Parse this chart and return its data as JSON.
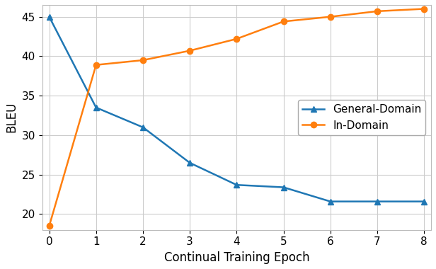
{
  "epochs": [
    0,
    1,
    2,
    3,
    4,
    5,
    6,
    7,
    8
  ],
  "general_domain": [
    45.0,
    33.5,
    31.0,
    26.5,
    23.7,
    23.4,
    21.6,
    21.6,
    21.6
  ],
  "in_domain": [
    18.5,
    38.9,
    39.5,
    40.7,
    42.2,
    44.4,
    45.0,
    45.7,
    46.0
  ],
  "general_color": "#1f77b4",
  "in_domain_color": "#ff7f0e",
  "xlabel": "Continual Training Epoch",
  "ylabel": "BLEU",
  "ylim": [
    18.0,
    46.5
  ],
  "xlim": [
    -0.15,
    8.15
  ],
  "yticks": [
    20,
    25,
    30,
    35,
    40,
    45
  ],
  "xticks": [
    0,
    1,
    2,
    3,
    4,
    5,
    6,
    7,
    8
  ],
  "legend_labels": [
    "General-Domain",
    "In-Domain"
  ],
  "general_marker": "^",
  "in_domain_marker": "o",
  "linewidth": 1.8,
  "markersize": 6,
  "grid_color": "#cccccc",
  "fig_background": "#ffffff",
  "ax_background": "#ffffff",
  "xlabel_fontsize": 12,
  "ylabel_fontsize": 12,
  "tick_fontsize": 11,
  "legend_fontsize": 11
}
